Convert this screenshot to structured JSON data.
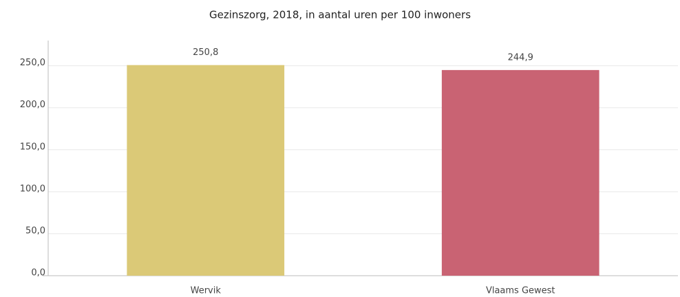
{
  "chart_data": {
    "type": "bar",
    "title": "Gezinszorg, 2018, in aantal uren per 100 inwoners",
    "categories": [
      "Wervik",
      "Vlaams Gewest"
    ],
    "values": [
      250.8,
      244.9
    ],
    "value_labels": [
      "250,8",
      "244,9"
    ],
    "colors": [
      "#dbc977",
      "#c96373"
    ],
    "ylim": [
      0,
      280
    ],
    "yticks": [
      {
        "value": 0,
        "label": "0,0"
      },
      {
        "value": 50,
        "label": "50,0"
      },
      {
        "value": 100,
        "label": "100,0"
      },
      {
        "value": 150,
        "label": "150,0"
      },
      {
        "value": 200,
        "label": "200,0"
      },
      {
        "value": 250,
        "label": "250,0"
      }
    ],
    "grid": true
  }
}
